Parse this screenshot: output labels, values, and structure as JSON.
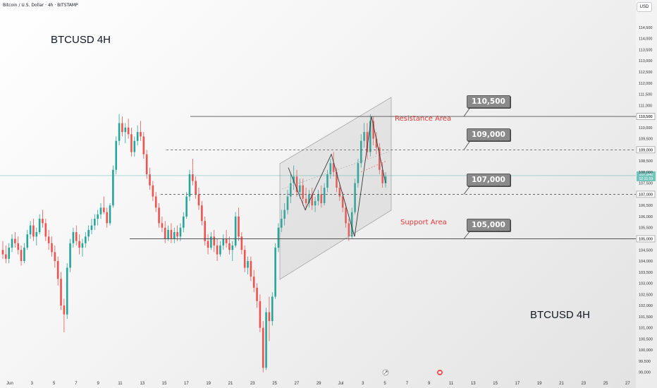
{
  "header": {
    "title": "Bitcoin / U.S. Dollar · 4h · BITSTAMP",
    "currency": "USD"
  },
  "titles": {
    "top_left": "BTCUSD 4H",
    "bottom_right": "BTCUSD 4H"
  },
  "areas": {
    "resistance": "Resistance Area",
    "support": "Support Area"
  },
  "callouts": {
    "c110500": "110,500",
    "c109000": "109,000",
    "c107000": "107,000",
    "c105000": "105,000"
  },
  "price_tags": {
    "t110500": "110,500",
    "t109000": "109,000",
    "current_price": "107,840",
    "current_countdown": "02:31:59",
    "t107000": "107,000",
    "t105000": "105,000"
  },
  "colors": {
    "up": "#26a69a",
    "down": "#ef5350",
    "resistance_text": "#e53935",
    "line": "#555555"
  },
  "chart_data": {
    "type": "candlestick",
    "y_axis": {
      "ticks": [
        "114,500",
        "114,000",
        "113,500",
        "113,000",
        "112,500",
        "112,000",
        "111,500",
        "111,000",
        "110,500",
        "110,000",
        "109,500",
        "109,000",
        "108,500",
        "108,000",
        "107,500",
        "107,000",
        "106,500",
        "106,000",
        "105,500",
        "105,000",
        "104,500",
        "104,000",
        "103,500",
        "103,000",
        "102,500",
        "102,000",
        "101,500",
        "101,000",
        "100,500",
        "100,000",
        "99,500",
        "99,000"
      ],
      "ylim": [
        98800,
        115100
      ],
      "position": "right"
    },
    "x_axis": {
      "ticks": [
        "Jun",
        "3",
        "5",
        "7",
        "9",
        "11",
        "13",
        "15",
        "17",
        "19",
        "21",
        "23",
        "25",
        "27",
        "29",
        "Jul",
        "3",
        "5",
        "7",
        "9",
        "11",
        "13",
        "15",
        "17",
        "19",
        "21",
        "23",
        "25",
        "27"
      ]
    },
    "horizontal_levels": [
      110500,
      109000,
      107000,
      105000
    ],
    "current_price": 107840,
    "ohlc": [
      [
        104500,
        104900,
        104100,
        104300
      ],
      [
        104300,
        104700,
        103900,
        104100
      ],
      [
        104100,
        104800,
        103900,
        104600
      ],
      [
        104600,
        105200,
        104400,
        105000
      ],
      [
        105000,
        105300,
        104600,
        104800
      ],
      [
        104800,
        105100,
        104300,
        104500
      ],
      [
        104500,
        104700,
        103800,
        104000
      ],
      [
        104000,
        104800,
        103900,
        104600
      ],
      [
        104600,
        105400,
        104500,
        105200
      ],
      [
        105200,
        105800,
        105000,
        105600
      ],
      [
        105600,
        105900,
        104900,
        105100
      ],
      [
        105100,
        105500,
        104700,
        105300
      ],
      [
        105300,
        106100,
        105200,
        105900
      ],
      [
        105900,
        106300,
        105500,
        105700
      ],
      [
        105700,
        105900,
        104900,
        105100
      ],
      [
        105100,
        105400,
        104500,
        104800
      ],
      [
        104800,
        105100,
        104200,
        104400
      ],
      [
        104400,
        104700,
        103700,
        104000
      ],
      [
        104000,
        104200,
        102900,
        103200
      ],
      [
        103200,
        103500,
        101800,
        102000
      ],
      [
        102000,
        102300,
        100800,
        101600
      ],
      [
        101600,
        103900,
        101400,
        103700
      ],
      [
        103700,
        105000,
        103500,
        104800
      ],
      [
        104800,
        105500,
        104600,
        105300
      ],
      [
        105300,
        105600,
        104700,
        104900
      ],
      [
        104900,
        105200,
        104300,
        104600
      ],
      [
        104600,
        105000,
        104200,
        104800
      ],
      [
        104800,
        105300,
        104600,
        105100
      ],
      [
        105100,
        105600,
        104900,
        105400
      ],
      [
        105400,
        105900,
        105200,
        105600
      ],
      [
        105600,
        106100,
        105400,
        105900
      ],
      [
        105900,
        106300,
        105600,
        106100
      ],
      [
        106100,
        106600,
        105900,
        106400
      ],
      [
        106400,
        106900,
        106100,
        106200
      ],
      [
        106200,
        106400,
        105500,
        105700
      ],
      [
        105700,
        106600,
        105600,
        106500
      ],
      [
        106500,
        108300,
        106400,
        108100
      ],
      [
        108100,
        109600,
        107900,
        109400
      ],
      [
        109400,
        110600,
        109200,
        110200
      ],
      [
        110200,
        110500,
        109600,
        109800
      ],
      [
        109800,
        110200,
        109300,
        110000
      ],
      [
        110000,
        110400,
        109500,
        109700
      ],
      [
        109700,
        110000,
        108700,
        108900
      ],
      [
        108900,
        109600,
        108700,
        109400
      ],
      [
        109400,
        110100,
        109200,
        109800
      ],
      [
        109800,
        110300,
        109400,
        109600
      ],
      [
        109600,
        109800,
        108600,
        108800
      ],
      [
        108800,
        109000,
        107700,
        107900
      ],
      [
        107900,
        108200,
        107200,
        107400
      ],
      [
        107400,
        107600,
        106700,
        106900
      ],
      [
        106900,
        107100,
        106200,
        106400
      ],
      [
        106400,
        106600,
        105500,
        105700
      ],
      [
        105700,
        106000,
        105300,
        105500
      ],
      [
        105500,
        105800,
        104800,
        105000
      ],
      [
        105000,
        105600,
        104900,
        105400
      ],
      [
        105400,
        105700,
        104800,
        105000
      ],
      [
        105000,
        105500,
        104800,
        105300
      ],
      [
        105300,
        105600,
        104900,
        105100
      ],
      [
        105100,
        105700,
        104900,
        105500
      ],
      [
        105500,
        106200,
        105300,
        106000
      ],
      [
        106000,
        107100,
        105900,
        106900
      ],
      [
        106900,
        108100,
        106700,
        107900
      ],
      [
        107900,
        108600,
        107400,
        107600
      ],
      [
        107600,
        107800,
        106800,
        107000
      ],
      [
        107000,
        107300,
        106300,
        106500
      ],
      [
        106500,
        106700,
        105600,
        105800
      ],
      [
        105800,
        106000,
        104700,
        104900
      ],
      [
        104900,
        105200,
        104300,
        104600
      ],
      [
        104600,
        105300,
        104500,
        105100
      ],
      [
        105100,
        105400,
        104400,
        104700
      ],
      [
        104700,
        105000,
        104000,
        104300
      ],
      [
        104300,
        104900,
        104200,
        104700
      ],
      [
        104700,
        105200,
        104500,
        105000
      ],
      [
        105000,
        105400,
        104600,
        104800
      ],
      [
        104800,
        105100,
        104300,
        104500
      ],
      [
        104500,
        104900,
        104000,
        104700
      ],
      [
        104700,
        106200,
        104600,
        106000
      ],
      [
        106000,
        106400,
        104900,
        105100
      ],
      [
        105100,
        105300,
        104300,
        104500
      ],
      [
        104500,
        104700,
        103500,
        103700
      ],
      [
        103700,
        104200,
        103400,
        104000
      ],
      [
        104000,
        104200,
        103100,
        103300
      ],
      [
        103300,
        103600,
        102600,
        102800
      ],
      [
        102800,
        103000,
        101900,
        102200
      ],
      [
        102200,
        102500,
        100800,
        101000
      ],
      [
        101000,
        101300,
        99000,
        99200
      ],
      [
        99200,
        101900,
        99100,
        101700
      ],
      [
        101700,
        102400,
        100400,
        101300
      ],
      [
        101300,
        102600,
        101100,
        102400
      ],
      [
        102400,
        104800,
        102300,
        104600
      ],
      [
        104600,
        105700,
        104400,
        105500
      ],
      [
        105500,
        106300,
        105300,
        105900
      ],
      [
        105900,
        106600,
        105600,
        106300
      ],
      [
        106300,
        107200,
        106100,
        106900
      ],
      [
        106900,
        107900,
        106600,
        107500
      ],
      [
        107500,
        108300,
        107200,
        107800
      ],
      [
        107800,
        108100,
        106900,
        107100
      ],
      [
        107100,
        107700,
        106800,
        107400
      ],
      [
        107400,
        107700,
        106500,
        106800
      ],
      [
        106800,
        107300,
        106300,
        106600
      ],
      [
        106600,
        107200,
        106400,
        107000
      ],
      [
        107000,
        107300,
        106300,
        106500
      ],
      [
        106500,
        106900,
        106200,
        106700
      ],
      [
        106700,
        107200,
        106500,
        107000
      ],
      [
        107000,
        107400,
        106400,
        106600
      ],
      [
        106600,
        107500,
        106500,
        107300
      ],
      [
        107300,
        108100,
        107100,
        107900
      ],
      [
        107900,
        108600,
        107700,
        108400
      ],
      [
        108400,
        108900,
        107800,
        108000
      ],
      [
        108000,
        108200,
        107100,
        107300
      ],
      [
        107300,
        107500,
        106700,
        106900
      ],
      [
        106900,
        107100,
        106200,
        106400
      ],
      [
        106400,
        106600,
        105500,
        105700
      ],
      [
        105700,
        105900,
        104900,
        105100
      ],
      [
        105100,
        106400,
        105000,
        106200
      ],
      [
        106200,
        107700,
        106100,
        107500
      ],
      [
        107500,
        108600,
        107300,
        108400
      ],
      [
        108400,
        109700,
        108200,
        109400
      ],
      [
        109400,
        110200,
        109100,
        109800
      ],
      [
        109800,
        110200,
        108600,
        108900
      ],
      [
        108900,
        110600,
        108700,
        110300
      ],
      [
        110300,
        110500,
        109200,
        109500
      ],
      [
        109500,
        109800,
        108800,
        109100
      ],
      [
        109100,
        109300,
        107900,
        108100
      ],
      [
        108100,
        108400,
        107300,
        107500
      ],
      [
        107500,
        108000,
        107300,
        107800
      ]
    ],
    "pattern_points": [
      [
        108200,
        107900
      ],
      [
        106900,
        106300
      ],
      [
        108900,
        108800
      ],
      [
        105200,
        105100
      ],
      [
        110600,
        110500
      ],
      [
        107800,
        107500
      ]
    ]
  }
}
